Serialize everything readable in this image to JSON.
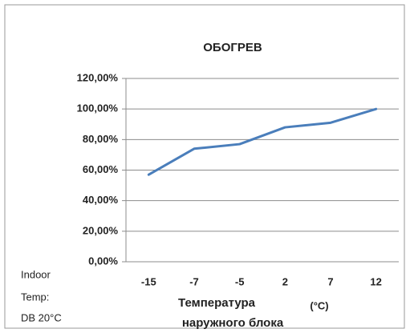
{
  "chart_data": {
    "type": "line",
    "title": "ОБОГРЕВ",
    "categories": [
      "-15",
      "-7",
      "-5",
      "2",
      "7",
      "12"
    ],
    "series": [
      {
        "name": "ОБОГРЕВ",
        "color": "#4a7ebb",
        "values": [
          57,
          74,
          77,
          88,
          91,
          100
        ]
      }
    ],
    "ylim": [
      0,
      120
    ],
    "yticks": [
      {
        "value": 0,
        "label": "0,00%"
      },
      {
        "value": 20,
        "label": "20,00%"
      },
      {
        "value": 40,
        "label": "40,00%"
      },
      {
        "value": 60,
        "label": "60,00%"
      },
      {
        "value": 80,
        "label": "80,00%"
      },
      {
        "value": 100,
        "label": "100,00%"
      },
      {
        "value": 120,
        "label": "120,00%"
      }
    ],
    "grid": true,
    "xlabel": [
      "Температура",
      "наружного блока"
    ],
    "xlabel_unit": "(°C)",
    "annotation": [
      "Indoor",
      "Temp:",
      "DB 20°C"
    ]
  }
}
